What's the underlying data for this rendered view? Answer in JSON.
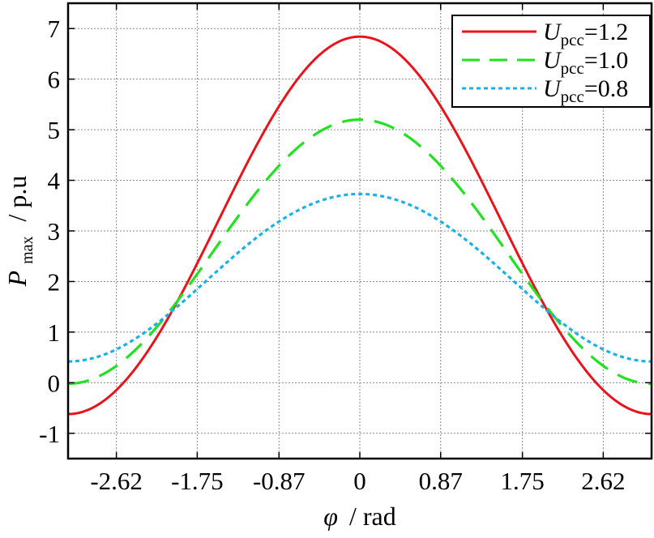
{
  "chart_data": {
    "type": "line",
    "title": "",
    "xlabel": {
      "symbol": "φ",
      "unit": "/ rad"
    },
    "ylabel": {
      "symbol": "P",
      "subscript": "max",
      "unit": "/ p.u"
    },
    "xlim": [
      -3.14,
      3.14
    ],
    "ylim": [
      -1.5,
      7.5
    ],
    "xticks": [
      -2.62,
      -1.75,
      -0.87,
      0,
      0.87,
      1.75,
      2.62
    ],
    "xtick_labels": [
      "-2.62",
      "-1.75",
      "-0.87",
      "0",
      "0.87",
      "1.75",
      "2.62"
    ],
    "yticks": [
      -1,
      0,
      1,
      2,
      3,
      4,
      5,
      6,
      7
    ],
    "ytick_labels": [
      "-1",
      "0",
      "1",
      "2",
      "3",
      "4",
      "5",
      "6",
      "7"
    ],
    "grid": true,
    "legend_position": "top-right",
    "x": [
      -3.14,
      -2.62,
      -1.75,
      -0.87,
      0,
      0.87,
      1.75,
      2.62,
      3.14
    ],
    "series": [
      {
        "name": "Upcc=1.2",
        "label_main": "U",
        "label_sub": "pcc",
        "label_value": "=1.2",
        "color": "#e8141b",
        "style": "solid",
        "values": [
          -0.62,
          -0.13,
          2.4,
          5.45,
          6.84,
          5.45,
          2.4,
          -0.13,
          -0.62
        ]
      },
      {
        "name": "Upcc=1.0",
        "label_main": "U",
        "label_sub": "pcc",
        "label_value": "=1.0",
        "color": "#22e022",
        "style": "dashed",
        "values": [
          -0.02,
          0.3,
          2.18,
          4.31,
          5.2,
          4.31,
          2.18,
          0.3,
          -0.02
        ]
      },
      {
        "name": "Upcc=0.8",
        "label_main": "U",
        "label_sub": "pcc",
        "label_value": "=0.8",
        "color": "#1ab0e8",
        "style": "dotted",
        "values": [
          0.42,
          0.66,
          1.9,
          3.12,
          3.73,
          3.12,
          1.9,
          0.66,
          0.42
        ]
      }
    ]
  }
}
